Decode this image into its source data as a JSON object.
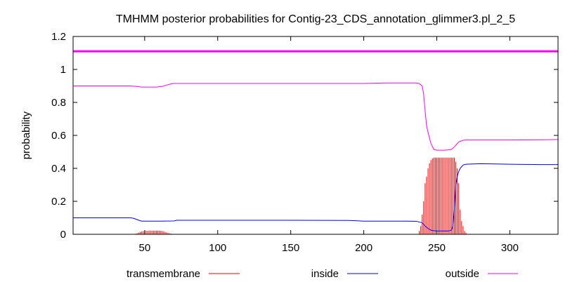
{
  "chart_data": {
    "type": "line",
    "title": "TMHMM posterior probabilities for Contig-23_CDS_annotation_glimmer3.pl_2_5",
    "xlabel": "",
    "ylabel": "probability",
    "xlim": [
      1,
      333
    ],
    "ylim": [
      0,
      1.2
    ],
    "xticks": [
      50,
      100,
      150,
      200,
      250,
      300
    ],
    "yticks": [
      0,
      0.2,
      0.4,
      0.6,
      0.8,
      1,
      1.2
    ],
    "ytick_labels": [
      "0",
      "0.2",
      "0.4",
      "0.6",
      "0.8",
      "1",
      "1.2"
    ],
    "grid": false,
    "legend_position": "bottom",
    "top_line": {
      "y": 1.11,
      "color": "#ff00ff"
    },
    "series": [
      {
        "name": "transmembrane",
        "style": "impulses",
        "color": "#ff0000",
        "x": [
          43,
          44,
          45,
          46,
          47,
          48,
          49,
          50,
          51,
          52,
          53,
          54,
          55,
          56,
          57,
          58,
          59,
          60,
          61,
          62,
          63,
          64,
          65,
          66,
          67,
          68,
          69,
          70,
          238,
          239,
          240,
          241,
          242,
          243,
          244,
          245,
          246,
          247,
          248,
          249,
          250,
          251,
          252,
          253,
          254,
          255,
          256,
          257,
          258,
          259,
          260,
          261,
          262,
          263,
          264,
          265,
          266,
          267,
          268,
          269,
          270
        ],
        "values": [
          0.002,
          0.004,
          0.006,
          0.01,
          0.014,
          0.017,
          0.019,
          0.02,
          0.021,
          0.021,
          0.022,
          0.022,
          0.022,
          0.022,
          0.022,
          0.022,
          0.022,
          0.022,
          0.021,
          0.02,
          0.018,
          0.015,
          0.012,
          0.009,
          0.006,
          0.004,
          0.002,
          0.001,
          0.02,
          0.05,
          0.12,
          0.2,
          0.31,
          0.35,
          0.4,
          0.43,
          0.45,
          0.46,
          0.465,
          0.465,
          0.465,
          0.465,
          0.465,
          0.465,
          0.465,
          0.465,
          0.465,
          0.465,
          0.465,
          0.465,
          0.465,
          0.465,
          0.465,
          0.44,
          0.4,
          0.31,
          0.15,
          0.08,
          0.05,
          0.02,
          0.01
        ]
      },
      {
        "name": "inside",
        "style": "line",
        "color": "#0000ff",
        "x": [
          1,
          40,
          42,
          44,
          46,
          48,
          60,
          70,
          72,
          100,
          150,
          190,
          200,
          230,
          236,
          240,
          242,
          244,
          246,
          248,
          250,
          255,
          258,
          260,
          261,
          262,
          263,
          264,
          265,
          266,
          268,
          270,
          280,
          300,
          310,
          320,
          333
        ],
        "values": [
          0.1,
          0.1,
          0.098,
          0.092,
          0.085,
          0.08,
          0.08,
          0.081,
          0.085,
          0.085,
          0.085,
          0.084,
          0.08,
          0.08,
          0.079,
          0.07,
          0.05,
          0.035,
          0.025,
          0.022,
          0.02,
          0.02,
          0.02,
          0.025,
          0.05,
          0.15,
          0.3,
          0.35,
          0.38,
          0.4,
          0.42,
          0.425,
          0.428,
          0.425,
          0.424,
          0.423,
          0.423
        ]
      },
      {
        "name": "outside",
        "style": "line",
        "color": "#ff00ff",
        "x": [
          1,
          40,
          43,
          46,
          48,
          58,
          62,
          65,
          67,
          70,
          72,
          100,
          150,
          200,
          210,
          215,
          236,
          238,
          240,
          241,
          242,
          243,
          244,
          246,
          248,
          250,
          255,
          258,
          260,
          262,
          265,
          268,
          270,
          300,
          320,
          333
        ],
        "values": [
          0.9,
          0.9,
          0.898,
          0.895,
          0.893,
          0.893,
          0.897,
          0.905,
          0.91,
          0.915,
          0.915,
          0.915,
          0.915,
          0.915,
          0.917,
          0.918,
          0.918,
          0.914,
          0.9,
          0.85,
          0.75,
          0.66,
          0.62,
          0.55,
          0.515,
          0.51,
          0.51,
          0.512,
          0.515,
          0.53,
          0.56,
          0.57,
          0.572,
          0.572,
          0.573,
          0.575
        ]
      }
    ]
  }
}
